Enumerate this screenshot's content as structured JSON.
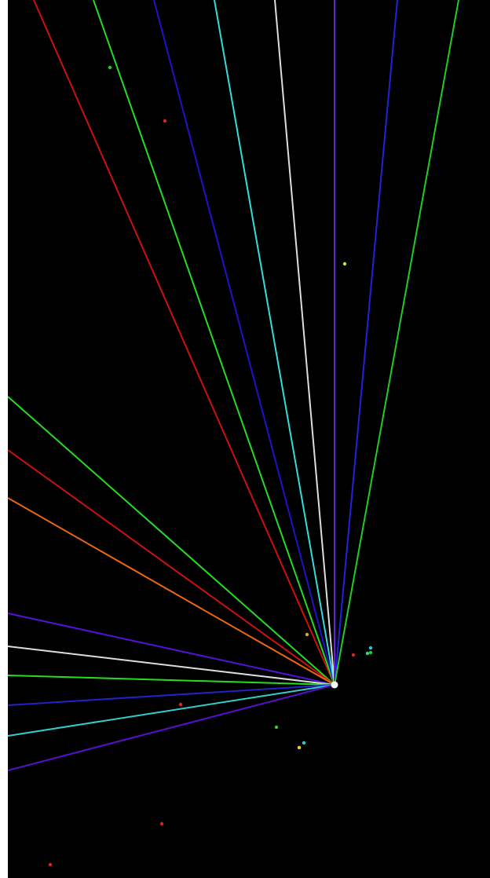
{
  "scene": {
    "background": "#000000",
    "page_margin_color": "#ffffff",
    "emitter": {
      "color": "#ffffff"
    },
    "rays": [
      {
        "color": "#cc1111"
      },
      {
        "color": "#22dd22"
      },
      {
        "color": "#2211cc"
      },
      {
        "color": "#33dddd"
      },
      {
        "color": "#dddddd"
      },
      {
        "color": "#6622dd"
      },
      {
        "color": "#2222dd"
      },
      {
        "color": "#22cc22"
      },
      {
        "color": "#22dd22"
      },
      {
        "color": "#cc1111"
      },
      {
        "color": "#ee6611"
      },
      {
        "color": "#5511dd"
      },
      {
        "color": "#dddddd"
      },
      {
        "color": "#22dd22"
      },
      {
        "color": "#2222cc"
      },
      {
        "color": "#33cccc"
      },
      {
        "color": "#5511cc"
      }
    ],
    "particles": [
      {
        "color": "#22cc22"
      },
      {
        "color": "#dd2222"
      },
      {
        "color": "#dddd22"
      },
      {
        "color": "#ddaa22"
      },
      {
        "color": "#dd2222"
      },
      {
        "color": "#22cccc"
      },
      {
        "color": "#22dd88"
      },
      {
        "color": "#33cc33"
      },
      {
        "color": "#dd2222"
      },
      {
        "color": "#22cc22"
      },
      {
        "color": "#33cccc"
      },
      {
        "color": "#dddd22"
      },
      {
        "color": "#dd2222"
      },
      {
        "color": "#dd2222"
      }
    ]
  }
}
